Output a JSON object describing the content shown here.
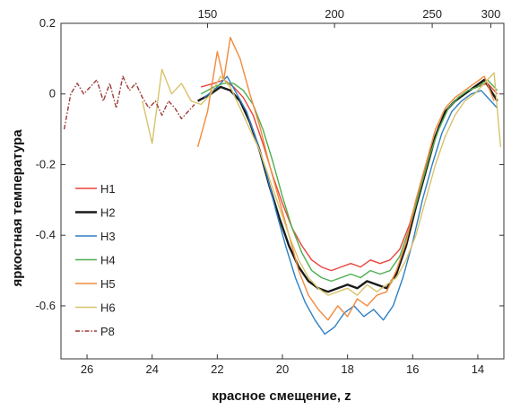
{
  "chart_data": {
    "type": "line",
    "title": "",
    "xlabel": "красное смещение, z",
    "ylabel": "яркостная температура",
    "x2label": "",
    "xlim": [
      26.8,
      13.2
    ],
    "ylim": [
      -0.75,
      0.2
    ],
    "x_ticks": [
      26,
      24,
      22,
      20,
      18,
      16,
      14
    ],
    "y_ticks": [
      0.2,
      0,
      -0.2,
      -0.4,
      -0.6
    ],
    "x2_ticks": [
      {
        "label": "150",
        "z": 22.3
      },
      {
        "label": "200",
        "z": 18.4
      },
      {
        "label": "250",
        "z": 15.4
      },
      {
        "label": "300",
        "z": 13.6
      }
    ],
    "legend_position": "left",
    "grid": false,
    "series": [
      {
        "name": "H1",
        "color": "#e8453c",
        "width": 1.4,
        "dash": "",
        "x": [
          22.5,
          22.1,
          21.8,
          21.5,
          21.2,
          20.9,
          20.6,
          20.3,
          20.0,
          19.7,
          19.4,
          19.1,
          18.8,
          18.5,
          18.2,
          17.9,
          17.6,
          17.3,
          17.0,
          16.7,
          16.4,
          16.1,
          15.8,
          15.5,
          15.2,
          14.9,
          14.6,
          14.3,
          14.0,
          13.7,
          13.4
        ],
        "y": [
          0.02,
          0.03,
          0.04,
          0.02,
          -0.01,
          -0.06,
          -0.14,
          -0.23,
          -0.31,
          -0.38,
          -0.43,
          -0.47,
          -0.49,
          -0.5,
          -0.49,
          -0.48,
          -0.49,
          -0.47,
          -0.48,
          -0.47,
          -0.44,
          -0.37,
          -0.27,
          -0.17,
          -0.09,
          -0.04,
          -0.01,
          0.01,
          0.02,
          0.03,
          0.0
        ]
      },
      {
        "name": "H2",
        "color": "#1a1a1a",
        "width": 2.4,
        "dash": "",
        "x": [
          22.6,
          22.2,
          21.9,
          21.6,
          21.3,
          21.0,
          20.7,
          20.4,
          20.1,
          19.8,
          19.5,
          19.2,
          18.9,
          18.6,
          18.3,
          18.0,
          17.7,
          17.4,
          17.1,
          16.8,
          16.5,
          16.2,
          15.9,
          15.6,
          15.3,
          15.0,
          14.7,
          14.4,
          14.1,
          13.8,
          13.4
        ],
        "y": [
          -0.02,
          0.0,
          0.02,
          0.01,
          -0.02,
          -0.08,
          -0.16,
          -0.26,
          -0.35,
          -0.43,
          -0.49,
          -0.53,
          -0.55,
          -0.56,
          -0.55,
          -0.54,
          -0.55,
          -0.53,
          -0.54,
          -0.55,
          -0.51,
          -0.43,
          -0.32,
          -0.22,
          -0.12,
          -0.05,
          -0.02,
          0.0,
          0.02,
          0.04,
          -0.02
        ]
      },
      {
        "name": "H3",
        "color": "#2e7fc4",
        "width": 1.4,
        "dash": "",
        "x": [
          22.4,
          22.0,
          21.7,
          21.4,
          21.1,
          20.8,
          20.5,
          20.2,
          19.9,
          19.6,
          19.3,
          19.0,
          18.7,
          18.4,
          18.1,
          17.8,
          17.5,
          17.2,
          16.9,
          16.6,
          16.3,
          16.0,
          15.7,
          15.4,
          15.1,
          14.8,
          14.5,
          14.2,
          13.9,
          13.6,
          13.4
        ],
        "y": [
          -0.01,
          0.02,
          0.05,
          0.0,
          -0.05,
          -0.13,
          -0.22,
          -0.33,
          -0.43,
          -0.52,
          -0.59,
          -0.64,
          -0.68,
          -0.66,
          -0.62,
          -0.6,
          -0.63,
          -0.61,
          -0.64,
          -0.6,
          -0.52,
          -0.42,
          -0.3,
          -0.2,
          -0.11,
          -0.05,
          -0.02,
          0.0,
          0.01,
          -0.02,
          -0.04
        ]
      },
      {
        "name": "H4",
        "color": "#4caf50",
        "width": 1.4,
        "dash": "",
        "x": [
          22.5,
          22.1,
          21.8,
          21.5,
          21.2,
          20.9,
          20.6,
          20.3,
          20.0,
          19.7,
          19.4,
          19.1,
          18.8,
          18.5,
          18.2,
          17.9,
          17.6,
          17.3,
          17.0,
          16.7,
          16.4,
          16.1,
          15.8,
          15.5,
          15.2,
          14.9,
          14.6,
          14.3,
          14.0,
          13.7,
          13.4
        ],
        "y": [
          0.0,
          0.02,
          0.03,
          0.03,
          0.01,
          -0.03,
          -0.1,
          -0.19,
          -0.29,
          -0.38,
          -0.45,
          -0.5,
          -0.52,
          -0.53,
          -0.52,
          -0.51,
          -0.52,
          -0.5,
          -0.51,
          -0.5,
          -0.46,
          -0.38,
          -0.28,
          -0.18,
          -0.1,
          -0.04,
          -0.01,
          0.01,
          0.02,
          0.04,
          0.01
        ]
      },
      {
        "name": "H5",
        "color": "#f28a3a",
        "width": 1.4,
        "dash": "",
        "x": [
          22.6,
          22.3,
          22.0,
          21.8,
          21.6,
          21.3,
          21.0,
          20.7,
          20.4,
          20.1,
          19.8,
          19.5,
          19.2,
          18.9,
          18.6,
          18.3,
          18.0,
          17.7,
          17.4,
          17.1,
          16.8,
          16.5,
          16.2,
          15.9,
          15.6,
          15.3,
          15.0,
          14.7,
          14.4,
          14.1,
          13.8,
          13.5
        ],
        "y": [
          -0.15,
          -0.05,
          0.12,
          0.04,
          0.16,
          0.1,
          0.0,
          -0.09,
          -0.2,
          -0.3,
          -0.4,
          -0.5,
          -0.57,
          -0.61,
          -0.64,
          -0.6,
          -0.63,
          -0.58,
          -0.6,
          -0.57,
          -0.56,
          -0.5,
          -0.42,
          -0.3,
          -0.2,
          -0.1,
          -0.04,
          -0.01,
          0.01,
          0.03,
          0.05,
          -0.02
        ]
      },
      {
        "name": "H6",
        "color": "#d8c36a",
        "width": 1.4,
        "dash": "",
        "x": [
          24.3,
          24.0,
          23.7,
          23.4,
          23.1,
          22.8,
          22.5,
          22.2,
          21.9,
          21.6,
          21.3,
          21.0,
          20.7,
          20.4,
          20.1,
          19.8,
          19.5,
          19.2,
          18.9,
          18.6,
          18.3,
          18.0,
          17.7,
          17.4,
          17.1,
          16.8,
          16.5,
          16.2,
          15.9,
          15.6,
          15.3,
          15.0,
          14.7,
          14.4,
          14.1,
          13.8,
          13.5,
          13.3
        ],
        "y": [
          -0.02,
          -0.14,
          0.07,
          0.0,
          0.03,
          -0.02,
          -0.03,
          0.0,
          0.05,
          0.02,
          -0.04,
          -0.1,
          -0.16,
          -0.24,
          -0.32,
          -0.4,
          -0.47,
          -0.52,
          -0.55,
          -0.57,
          -0.56,
          -0.55,
          -0.57,
          -0.54,
          -0.56,
          -0.54,
          -0.52,
          -0.47,
          -0.4,
          -0.3,
          -0.2,
          -0.12,
          -0.06,
          -0.02,
          0.0,
          0.03,
          0.06,
          -0.15
        ]
      },
      {
        "name": "P8",
        "color": "#9c3a34",
        "width": 1.4,
        "dash": "5,2,1.5,2",
        "x": [
          26.7,
          26.5,
          26.3,
          26.1,
          25.9,
          25.7,
          25.5,
          25.3,
          25.1,
          24.9,
          24.7,
          24.5,
          24.3,
          24.1,
          23.9,
          23.7,
          23.5,
          23.3,
          23.1,
          22.9,
          22.7
        ],
        "y": [
          -0.1,
          0.0,
          0.03,
          0.0,
          0.02,
          0.04,
          -0.02,
          0.03,
          -0.04,
          0.05,
          0.01,
          0.03,
          -0.01,
          -0.04,
          -0.02,
          -0.06,
          -0.02,
          -0.04,
          -0.07,
          -0.05,
          -0.03
        ]
      }
    ]
  }
}
